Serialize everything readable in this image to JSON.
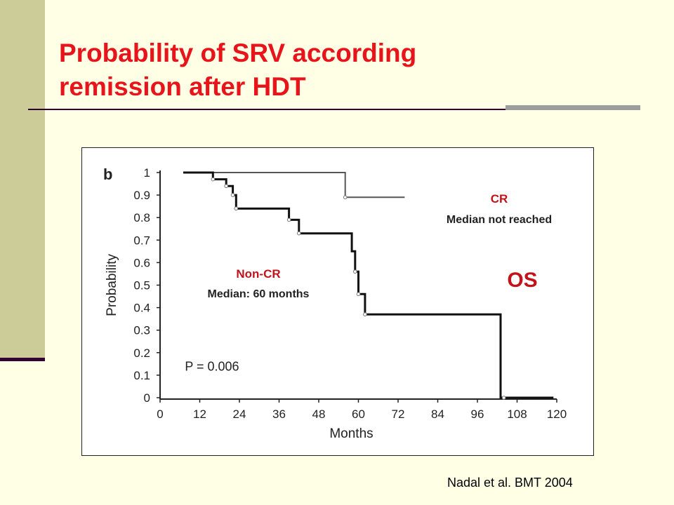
{
  "slide": {
    "title_line1": "Probability of SRV according",
    "title_line2": "remission after HDT",
    "citation": "Nadal et al. BMT 2004"
  },
  "colors": {
    "title": "#e8141c",
    "annotation": "#c0141c",
    "left_band": "#cccc99",
    "background": "#ffffe5"
  },
  "chart_data": {
    "type": "line",
    "panel_label": "b",
    "xlabel": "Months",
    "ylabel": "Probability",
    "xlim": [
      0,
      120
    ],
    "ylim": [
      0,
      1
    ],
    "x_ticks": [
      "0",
      "12",
      "24",
      "36",
      "48",
      "60",
      "72",
      "84",
      "96",
      "108",
      "120"
    ],
    "y_ticks": [
      "0",
      "0.1",
      "0.2",
      "0.3",
      "0.4",
      "0.5",
      "0.6",
      "0.7",
      "0.8",
      "0.9",
      "1"
    ],
    "p_value": "P = 0.006",
    "series": [
      {
        "label": "CR",
        "sublabel": "Median not reached",
        "step_points": [
          [
            7,
            1
          ],
          [
            56,
            1
          ],
          [
            56,
            0.89
          ],
          [
            74,
            0.89
          ]
        ],
        "censor_marks": [
          [
            56,
            0.89
          ]
        ]
      },
      {
        "label": "Non-CR",
        "sublabel": "Median: 60 months",
        "step_points": [
          [
            7,
            1
          ],
          [
            16,
            1
          ],
          [
            16,
            0.97
          ],
          [
            20,
            0.97
          ],
          [
            20,
            0.94
          ],
          [
            22,
            0.94
          ],
          [
            22,
            0.9
          ],
          [
            23,
            0.9
          ],
          [
            23,
            0.84
          ],
          [
            39,
            0.84
          ],
          [
            39,
            0.79
          ],
          [
            42,
            0.79
          ],
          [
            42,
            0.73
          ],
          [
            58,
            0.73
          ],
          [
            58,
            0.65
          ],
          [
            59,
            0.65
          ],
          [
            59,
            0.56
          ],
          [
            60,
            0.56
          ],
          [
            60,
            0.46
          ],
          [
            62,
            0.46
          ],
          [
            62,
            0.37
          ],
          [
            103,
            0.37
          ],
          [
            103,
            0
          ],
          [
            119,
            0
          ]
        ],
        "censor_marks": [
          [
            16,
            0.97
          ],
          [
            20,
            0.94
          ],
          [
            22,
            0.9
          ],
          [
            23,
            0.84
          ],
          [
            39,
            0.79
          ],
          [
            42,
            0.73
          ],
          [
            59,
            0.56
          ],
          [
            60,
            0.46
          ],
          [
            62,
            0.37
          ],
          [
            104,
            0
          ]
        ]
      }
    ],
    "annotations": [
      "OS"
    ]
  }
}
